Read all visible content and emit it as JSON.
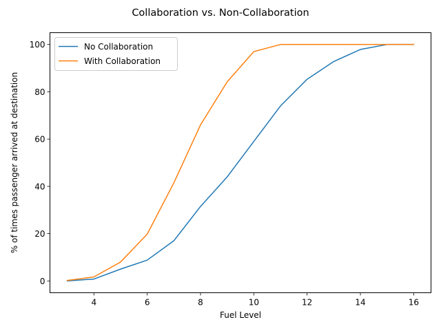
{
  "chart_data": {
    "type": "line",
    "title": "Collaboration vs. Non-Collaboration",
    "xlabel": "Fuel Level",
    "ylabel": "% of times passenger arrived at destination",
    "xlim": [
      2.35,
      16.65
    ],
    "ylim": [
      -5,
      105
    ],
    "xticks": [
      4,
      6,
      8,
      10,
      12,
      14,
      16
    ],
    "yticks": [
      0,
      20,
      40,
      60,
      80,
      100
    ],
    "grid": false,
    "legend_position": "top-left",
    "x": [
      3,
      4,
      5,
      6,
      7,
      8,
      9,
      10,
      11,
      12,
      13,
      14,
      15,
      16
    ],
    "series": [
      {
        "name": "No Collaboration",
        "color": "#1f77b4",
        "values": [
          0,
          0.8,
          5,
          8.8,
          17,
          31.5,
          44,
          59,
          74,
          85.3,
          92.8,
          97.9,
          100,
          100
        ]
      },
      {
        "name": "With Collaboration",
        "color": "#ff7f0e",
        "values": [
          0.2,
          1.7,
          8,
          19.8,
          41.5,
          66,
          84.2,
          97,
          100,
          100,
          100,
          100,
          100,
          100
        ]
      }
    ]
  }
}
